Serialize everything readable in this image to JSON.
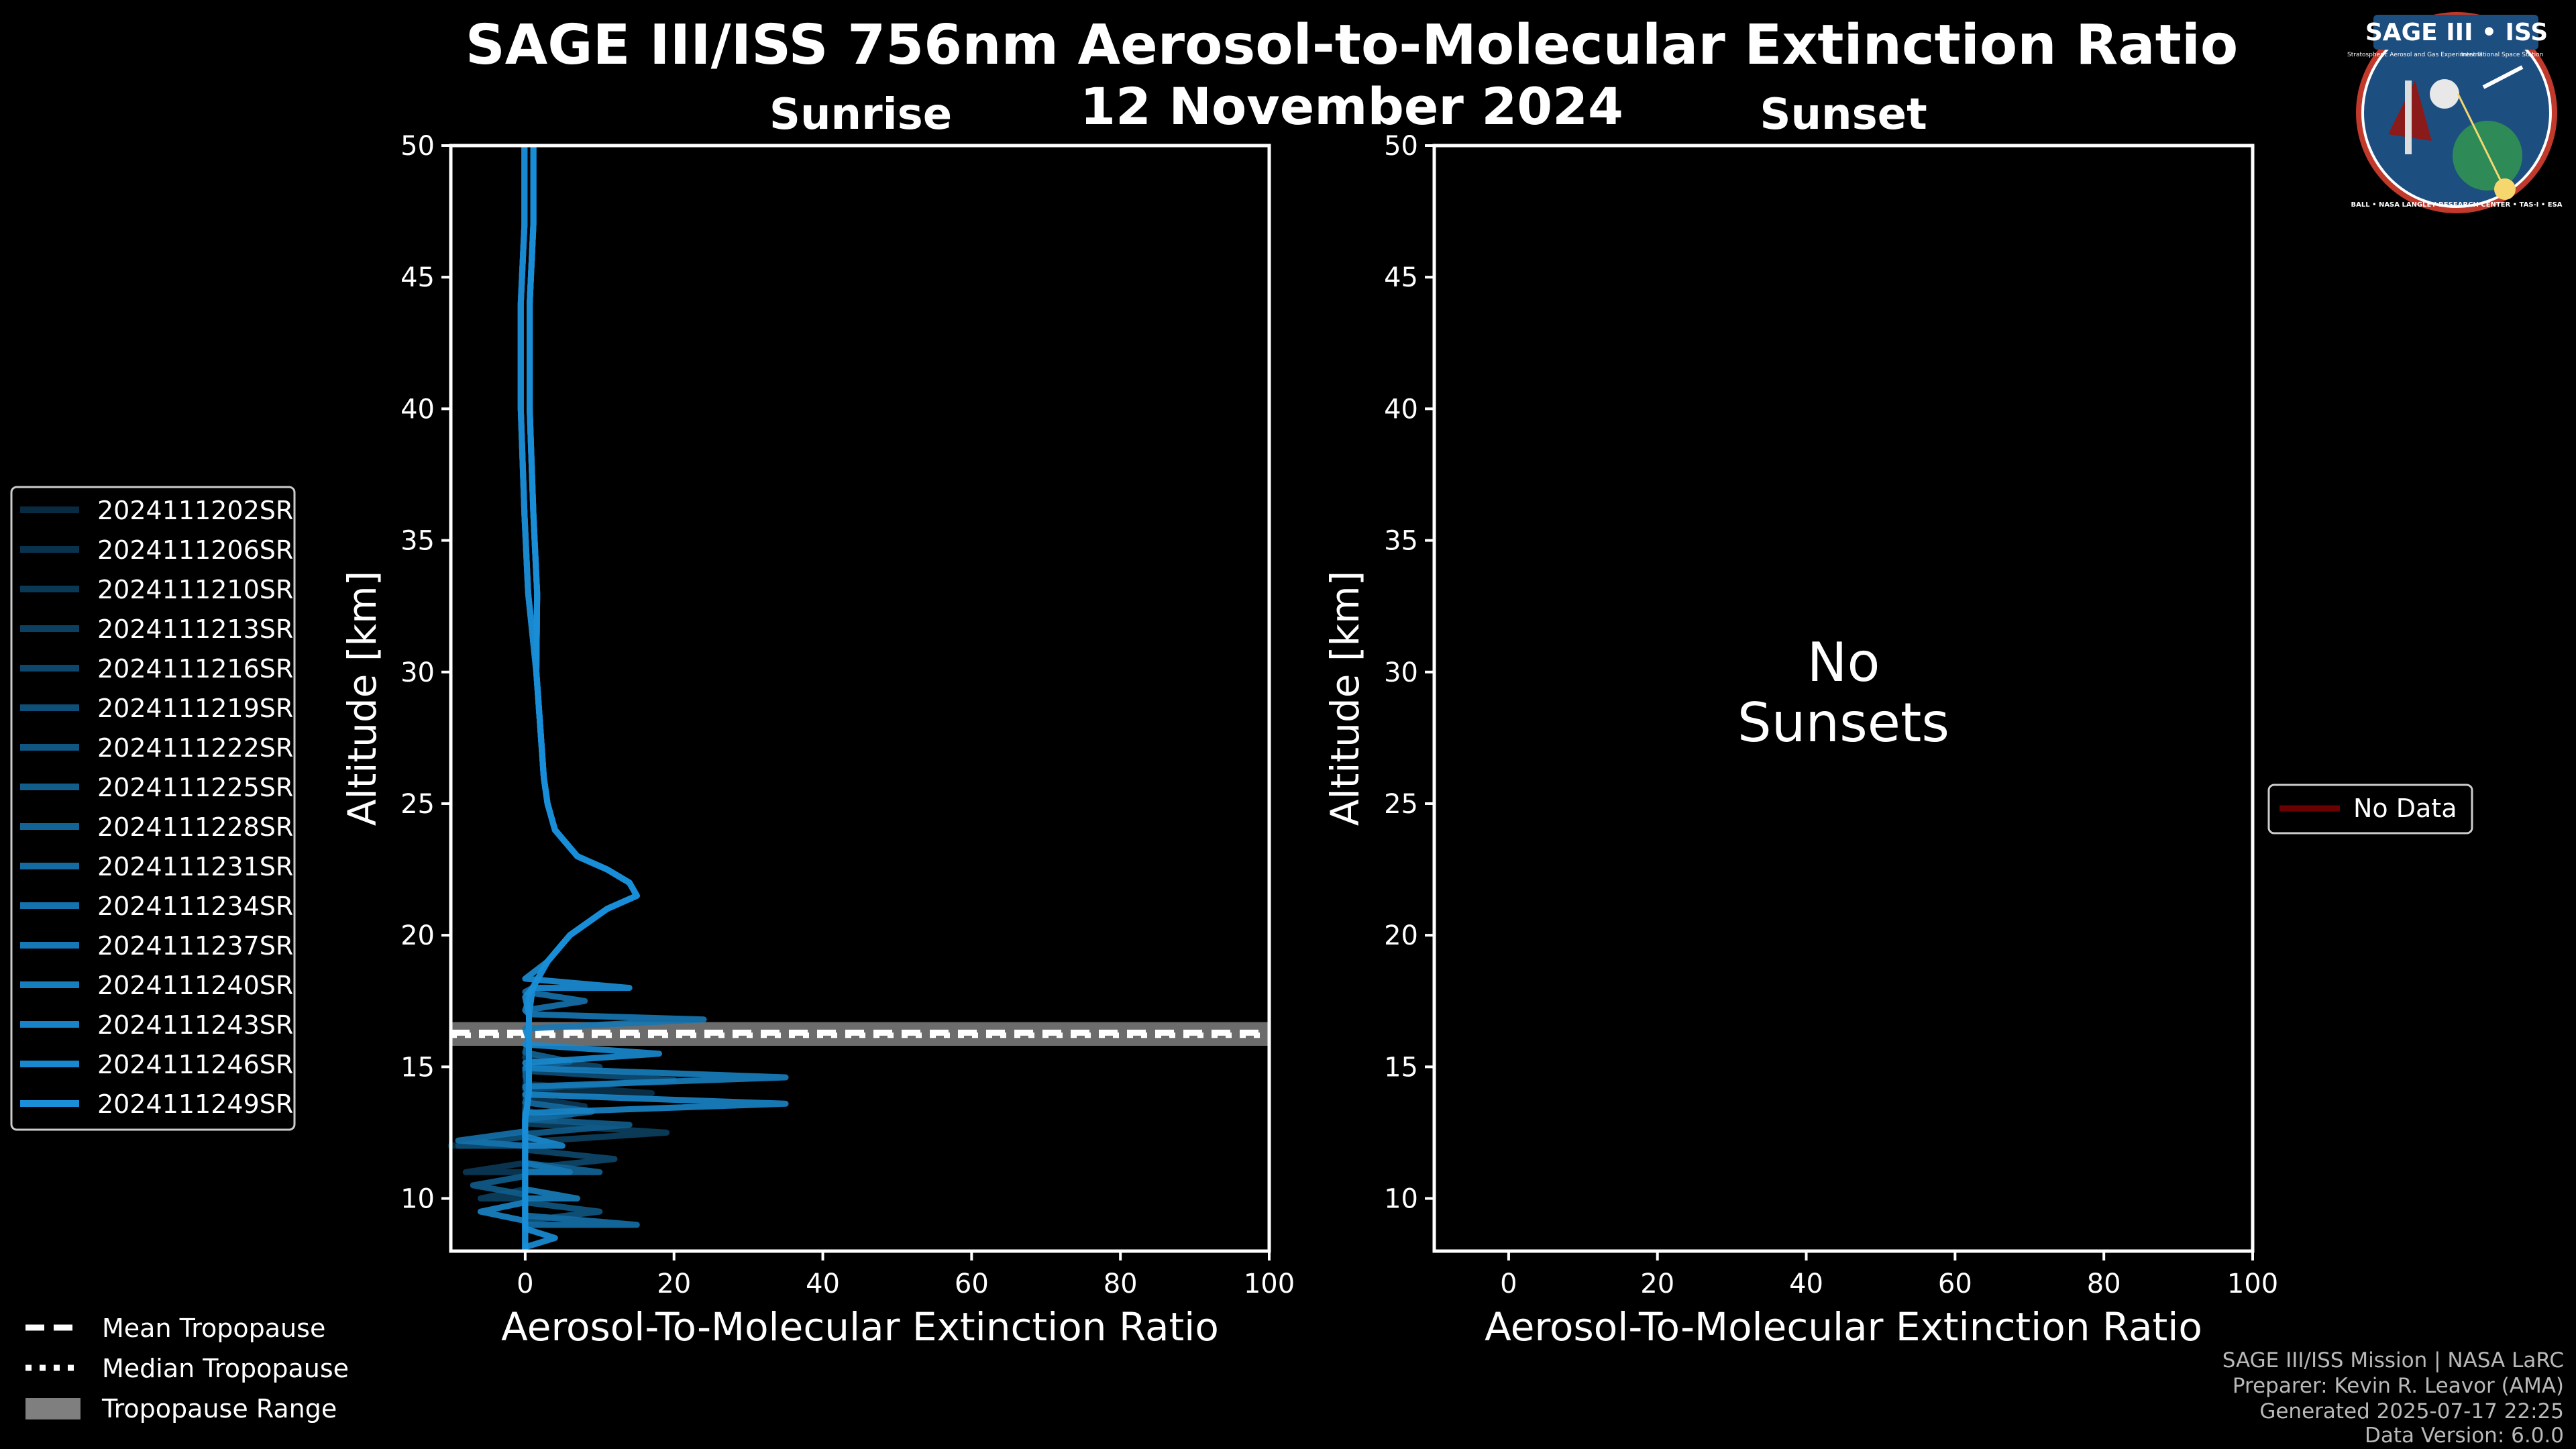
{
  "figure": {
    "title": "SAGE III/ISS 756nm Aerosol-to-Molecular Extinction Ratio",
    "date": "12 November 2024",
    "colors": {
      "background": "#000000",
      "axis": "#ffffff",
      "series": "#1a8fd8",
      "no_data": "#6b0000",
      "tropopause_band": "#7f7f7f"
    }
  },
  "logo": {
    "title": "SAGE III • ISS",
    "subtitle_left": "Stratospheric Aerosol and Gas Experiment III",
    "subtitle_right": "International Space Station",
    "ring_text": "BALL • NASA LANGLEY RESEARCH CENTER • TAS-I • ESA"
  },
  "footer": {
    "line1": "SAGE III/ISS Mission | NASA LaRC",
    "line2": "Preparer: Kevin R. Leavor (AMA)",
    "line3": "Generated 2025-07-17 22:25",
    "line4": "Data Version: 6.0.0"
  },
  "tropopause_legend": {
    "mean": "Mean Tropopause",
    "median": "Median Tropopause",
    "range": "Tropopause Range"
  },
  "chart_data": [
    {
      "type": "line",
      "panel": "sunrise",
      "title": "Sunrise",
      "xlabel": "Aerosol-To-Molecular Extinction Ratio",
      "ylabel": "Altitude [km]",
      "xlim": [
        -10,
        100
      ],
      "ylim": [
        8,
        50
      ],
      "xticks": [
        0,
        20,
        40,
        60,
        80,
        100
      ],
      "yticks": [
        10,
        15,
        20,
        25,
        30,
        35,
        40,
        45,
        50
      ],
      "tropopause": {
        "mean_km": 16.3,
        "median_km": 16.2,
        "range_km": [
          15.8,
          16.7
        ]
      },
      "base_profile": {
        "altitude_km": [
          8,
          9,
          10,
          11,
          12,
          13,
          14,
          15,
          16,
          17,
          18,
          19,
          20,
          21,
          21.5,
          22,
          22.5,
          23,
          24,
          25,
          26,
          28,
          30,
          33,
          36,
          40,
          44,
          47,
          50
        ],
        "ratio": [
          0,
          0,
          0,
          0,
          0,
          0,
          0.5,
          0.5,
          0.5,
          0.5,
          1,
          3,
          6,
          11,
          15,
          14,
          11,
          7,
          4,
          3,
          2.5,
          2,
          1.5,
          1,
          0.5,
          0,
          0,
          0.5,
          0.5
        ]
      },
      "series": [
        {
          "name": "2024111202SR",
          "shade": 0.3,
          "perturbations": [
            [
              12,
              -10
            ],
            [
              13,
              6
            ]
          ]
        },
        {
          "name": "2024111206SR",
          "shade": 0.35,
          "perturbations": [
            [
              14,
              17
            ],
            [
              9,
              15
            ]
          ]
        },
        {
          "name": "2024111210SR",
          "shade": 0.4,
          "perturbations": [
            [
              13.5,
              8
            ],
            [
              11,
              -8
            ]
          ]
        },
        {
          "name": "2024111213SR",
          "shade": 0.45,
          "perturbations": [
            [
              12.5,
              19
            ],
            [
              10,
              -6
            ]
          ]
        },
        {
          "name": "2024111216SR",
          "shade": 0.5,
          "perturbations": [
            [
              15,
              10
            ],
            [
              11.5,
              12
            ]
          ]
        },
        {
          "name": "2024111219SR",
          "shade": 0.55,
          "perturbations": [
            [
              14.5,
              20
            ],
            [
              12,
              -9
            ]
          ]
        },
        {
          "name": "2024111222SR",
          "shade": 0.6,
          "perturbations": [
            [
              9.5,
              10
            ],
            [
              13,
              4
            ]
          ]
        },
        {
          "name": "2024111225SR",
          "shade": 0.65,
          "perturbations": [
            [
              10.5,
              -7
            ],
            [
              12.8,
              14
            ]
          ]
        },
        {
          "name": "2024111228SR",
          "shade": 0.7,
          "perturbations": [
            [
              11,
              10
            ],
            [
              15.2,
              6
            ]
          ]
        },
        {
          "name": "2024111231SR",
          "shade": 0.75,
          "perturbations": [
            [
              9,
              15
            ],
            [
              13.3,
              9
            ]
          ]
        },
        {
          "name": "2024111234SR",
          "shade": 0.8,
          "perturbations": [
            [
              17.5,
              8
            ],
            [
              12.2,
              -9
            ]
          ]
        },
        {
          "name": "2024111237SR",
          "shade": 0.84,
          "perturbations": [
            [
              16.8,
              24
            ],
            [
              11,
              6
            ]
          ]
        },
        {
          "name": "2024111240SR",
          "shade": 0.88,
          "perturbations": [
            [
              14.6,
              35
            ],
            [
              10,
              7
            ]
          ]
        },
        {
          "name": "2024111243SR",
          "shade": 0.92,
          "perturbations": [
            [
              13.6,
              35
            ],
            [
              9.5,
              -6
            ]
          ]
        },
        {
          "name": "2024111246SR",
          "shade": 0.96,
          "perturbations": [
            [
              15.5,
              18
            ],
            [
              12,
              5
            ]
          ]
        },
        {
          "name": "2024111249SR",
          "shade": 1.0,
          "perturbations": [
            [
              18,
              14
            ],
            [
              8.5,
              4
            ]
          ]
        }
      ]
    },
    {
      "type": "line",
      "panel": "sunset",
      "title": "Sunset",
      "xlabel": "Aerosol-To-Molecular Extinction Ratio",
      "ylabel": "Altitude [km]",
      "xlim": [
        -10,
        100
      ],
      "ylim": [
        8,
        50
      ],
      "xticks": [
        0,
        20,
        40,
        60,
        80,
        100
      ],
      "yticks": [
        10,
        15,
        20,
        25,
        30,
        35,
        40,
        45,
        50
      ],
      "annotation_line1": "No",
      "annotation_line2": "Sunsets",
      "legend": [
        "No Data"
      ],
      "series": []
    }
  ]
}
